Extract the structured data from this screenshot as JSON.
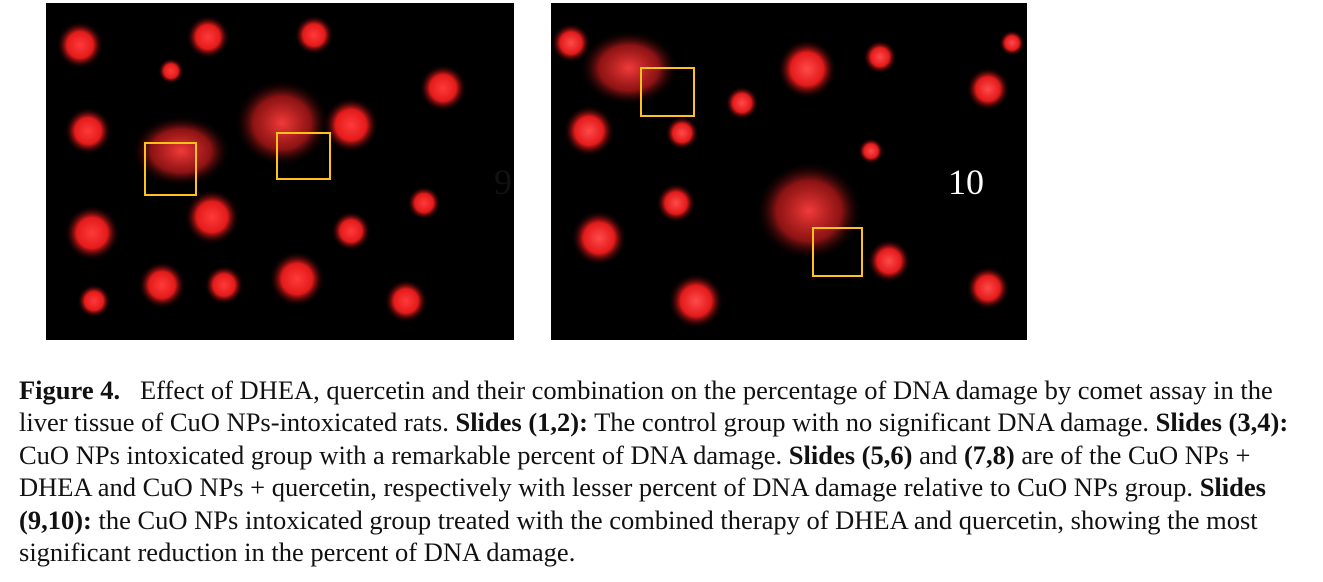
{
  "panels": [
    {
      "label": "9"
    },
    {
      "label": "10"
    }
  ],
  "colors": {
    "comet": "#ff2a2a",
    "box": "#ffc21a",
    "background": "#000000"
  },
  "caption": {
    "figure_label": "Figure 4.",
    "intro": "Effect of DHEA, quercetin and their combination on the percentage of DNA damage by comet assay in the liver tissue of CuO NPs-intoxicated rats.",
    "s12_label": "Slides (1,2):",
    "s12_text": "The control group with no significant DNA damage.",
    "s34_label": "Slides (3,4):",
    "s34_text": "CuO NPs intoxicated group with a remarkable percent of DNA damage.",
    "s56_label": "Slides (5,6)",
    "and_word": "and",
    "s78_label": "(7,8)",
    "s5678_text": "are of the CuO NPs + DHEA and CuO NPs + quercetin, respectively with lesser percent of DNA damage relative to CuO NPs group.",
    "s910_label": "Slides (9,10):",
    "s910_text": "the CuO NPs intoxicated group treated with the combined therapy of DHEA and quercetin, showing the most significant reduction in the percent of DNA damage."
  }
}
